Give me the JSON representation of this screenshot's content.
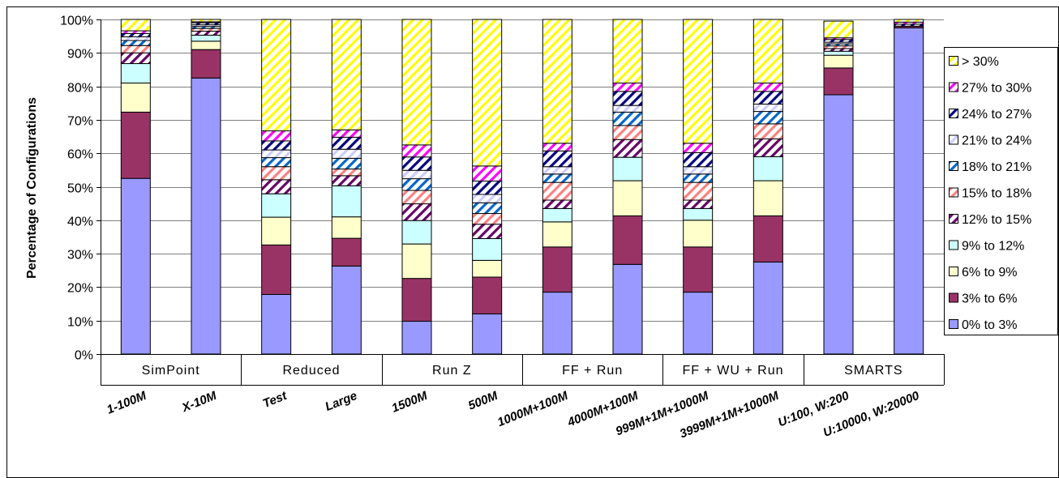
{
  "chart_data": {
    "type": "bar",
    "stacked": true,
    "title": "",
    "xlabel": "",
    "ylabel": "Percentage of Configurations",
    "ylim": [
      0,
      100
    ],
    "yticks": [
      "0%",
      "10%",
      "20%",
      "30%",
      "40%",
      "50%",
      "60%",
      "70%",
      "80%",
      "90%",
      "100%"
    ],
    "grid": "horizontal",
    "legend_position": "right",
    "groups": [
      {
        "label": "SimPoint",
        "span": 2
      },
      {
        "label": "Reduced",
        "span": 2
      },
      {
        "label": "Run Z",
        "span": 2
      },
      {
        "label": "FF + Run",
        "span": 2
      },
      {
        "label": "FF + WU + Run",
        "span": 2
      },
      {
        "label": "SMARTS",
        "span": 2
      }
    ],
    "categories": [
      "1-100M",
      "X-10M",
      "Test",
      "Large",
      "1500M",
      "500M",
      "1000M+100M",
      "4000M+100M",
      "999M+1M+1000M",
      "3999M+1M+1000M",
      "U:100, W:200",
      "U:10000, W:20000"
    ],
    "series": [
      {
        "name": "0% to 3%",
        "color": "#9999ff",
        "pattern": "solid",
        "values": [
          52.5,
          82.5,
          17.8,
          26.3,
          9.8,
          12.0,
          18.5,
          26.8,
          18.5,
          27.5,
          77.5,
          97.5
        ]
      },
      {
        "name": "3% to 6%",
        "color": "#993366",
        "pattern": "solid",
        "values": [
          19.8,
          8.5,
          14.8,
          8.3,
          12.8,
          11.0,
          13.5,
          14.5,
          13.5,
          13.8,
          8.0,
          0.5
        ]
      },
      {
        "name": "6% to 9%",
        "color": "#ffffcc",
        "pattern": "solid",
        "values": [
          8.7,
          2.5,
          8.3,
          6.4,
          10.3,
          5.0,
          7.5,
          10.5,
          8.0,
          10.5,
          3.8,
          0.0
        ]
      },
      {
        "name": "9% to 12%",
        "color": "#ccffff",
        "pattern": "solid",
        "values": [
          5.8,
          1.8,
          7.0,
          9.3,
          7.0,
          6.5,
          4.0,
          7.0,
          3.5,
          7.2,
          1.2,
          0.0
        ]
      },
      {
        "name": "12% to 15%",
        "color": "#660066",
        "pattern": "diag",
        "values": [
          3.2,
          1.2,
          4.2,
          3.0,
          5.0,
          4.3,
          2.5,
          5.3,
          2.5,
          5.3,
          0.8,
          0.0
        ]
      },
      {
        "name": "15% to 18%",
        "color": "#ff8080",
        "pattern": "diag",
        "values": [
          2.2,
          0.8,
          3.9,
          2.0,
          4.0,
          3.2,
          5.3,
          4.2,
          5.3,
          4.5,
          0.8,
          0.0
        ]
      },
      {
        "name": "18% to 21%",
        "color": "#0066cc",
        "pattern": "diag",
        "values": [
          1.5,
          0.6,
          2.7,
          3.2,
          3.5,
          3.2,
          2.5,
          4.0,
          2.5,
          3.7,
          0.6,
          0.0
        ]
      },
      {
        "name": "21% to 24%",
        "color": "#ccccff",
        "pattern": "diag",
        "values": [
          1.1,
          0.5,
          2.3,
          2.7,
          2.5,
          2.5,
          2.2,
          2.0,
          2.2,
          2.2,
          0.5,
          0.0
        ]
      },
      {
        "name": "24% to 27%",
        "color": "#000080",
        "pattern": "diag",
        "values": [
          1.0,
          0.6,
          2.7,
          3.6,
          4.0,
          4.0,
          4.7,
          4.2,
          4.2,
          3.8,
          0.8,
          0.6
        ]
      },
      {
        "name": "27% to 30%",
        "color": "#ff00ff",
        "pattern": "diag",
        "values": [
          0.8,
          0.3,
          3.0,
          2.2,
          3.6,
          4.5,
          2.3,
          2.5,
          2.8,
          2.5,
          0.5,
          0.6
        ]
      },
      {
        "name": "> 30%",
        "color": "#ffff00",
        "pattern": "diag",
        "values": [
          3.4,
          0.7,
          33.3,
          33.0,
          37.5,
          43.8,
          37.0,
          19.0,
          37.0,
          19.0,
          5.0,
          0.8
        ]
      }
    ]
  }
}
